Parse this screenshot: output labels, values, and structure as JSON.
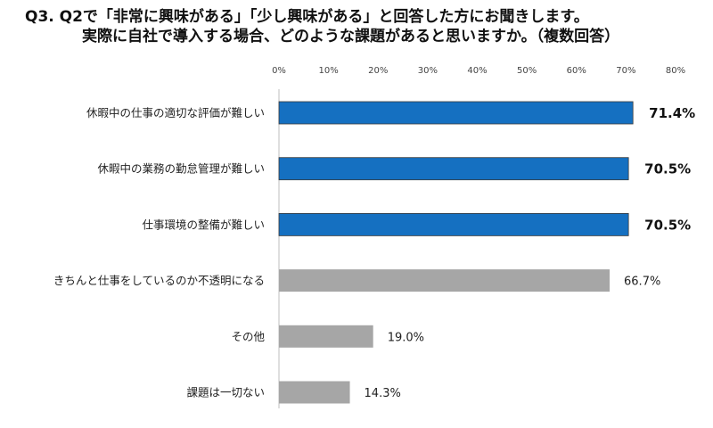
{
  "title": {
    "line1": "Q3.  Q2で「非常に興味がある」「少し興味がある」と回答した方にお聞きします。",
    "line2": "実際に自社で導入する場合、どのような課題があると思いますか。（複数回答）"
  },
  "chart_data": {
    "type": "bar",
    "orientation": "horizontal",
    "title": "",
    "xlabel": "",
    "ylabel": "",
    "xlim": [
      0,
      80
    ],
    "ticks": [
      "0%",
      "10%",
      "20%",
      "30%",
      "40%",
      "50%",
      "60%",
      "70%",
      "80%"
    ],
    "tick_values": [
      0,
      10,
      20,
      30,
      40,
      50,
      60,
      70,
      80
    ],
    "categories": [
      "休暇中の仕事の適切な評価が難しい",
      "休暇中の業務の勤怠管理が難しい",
      "仕事環境の整備が難しい",
      "きちんと仕事をしているのか不透明になる",
      "その他",
      "課題は一切ない"
    ],
    "values": [
      71.4,
      70.5,
      70.5,
      66.7,
      19.0,
      14.3
    ],
    "value_labels": [
      "71.4%",
      "70.5%",
      "70.5%",
      "66.7%",
      "19.0%",
      "14.3%"
    ],
    "highlight": [
      true,
      true,
      true,
      false,
      false,
      false
    ],
    "colors": {
      "highlight": "#1570c1",
      "normal": "#a6a6a6",
      "border": "#3a3a3a"
    },
    "legend": "none",
    "grid": false
  }
}
